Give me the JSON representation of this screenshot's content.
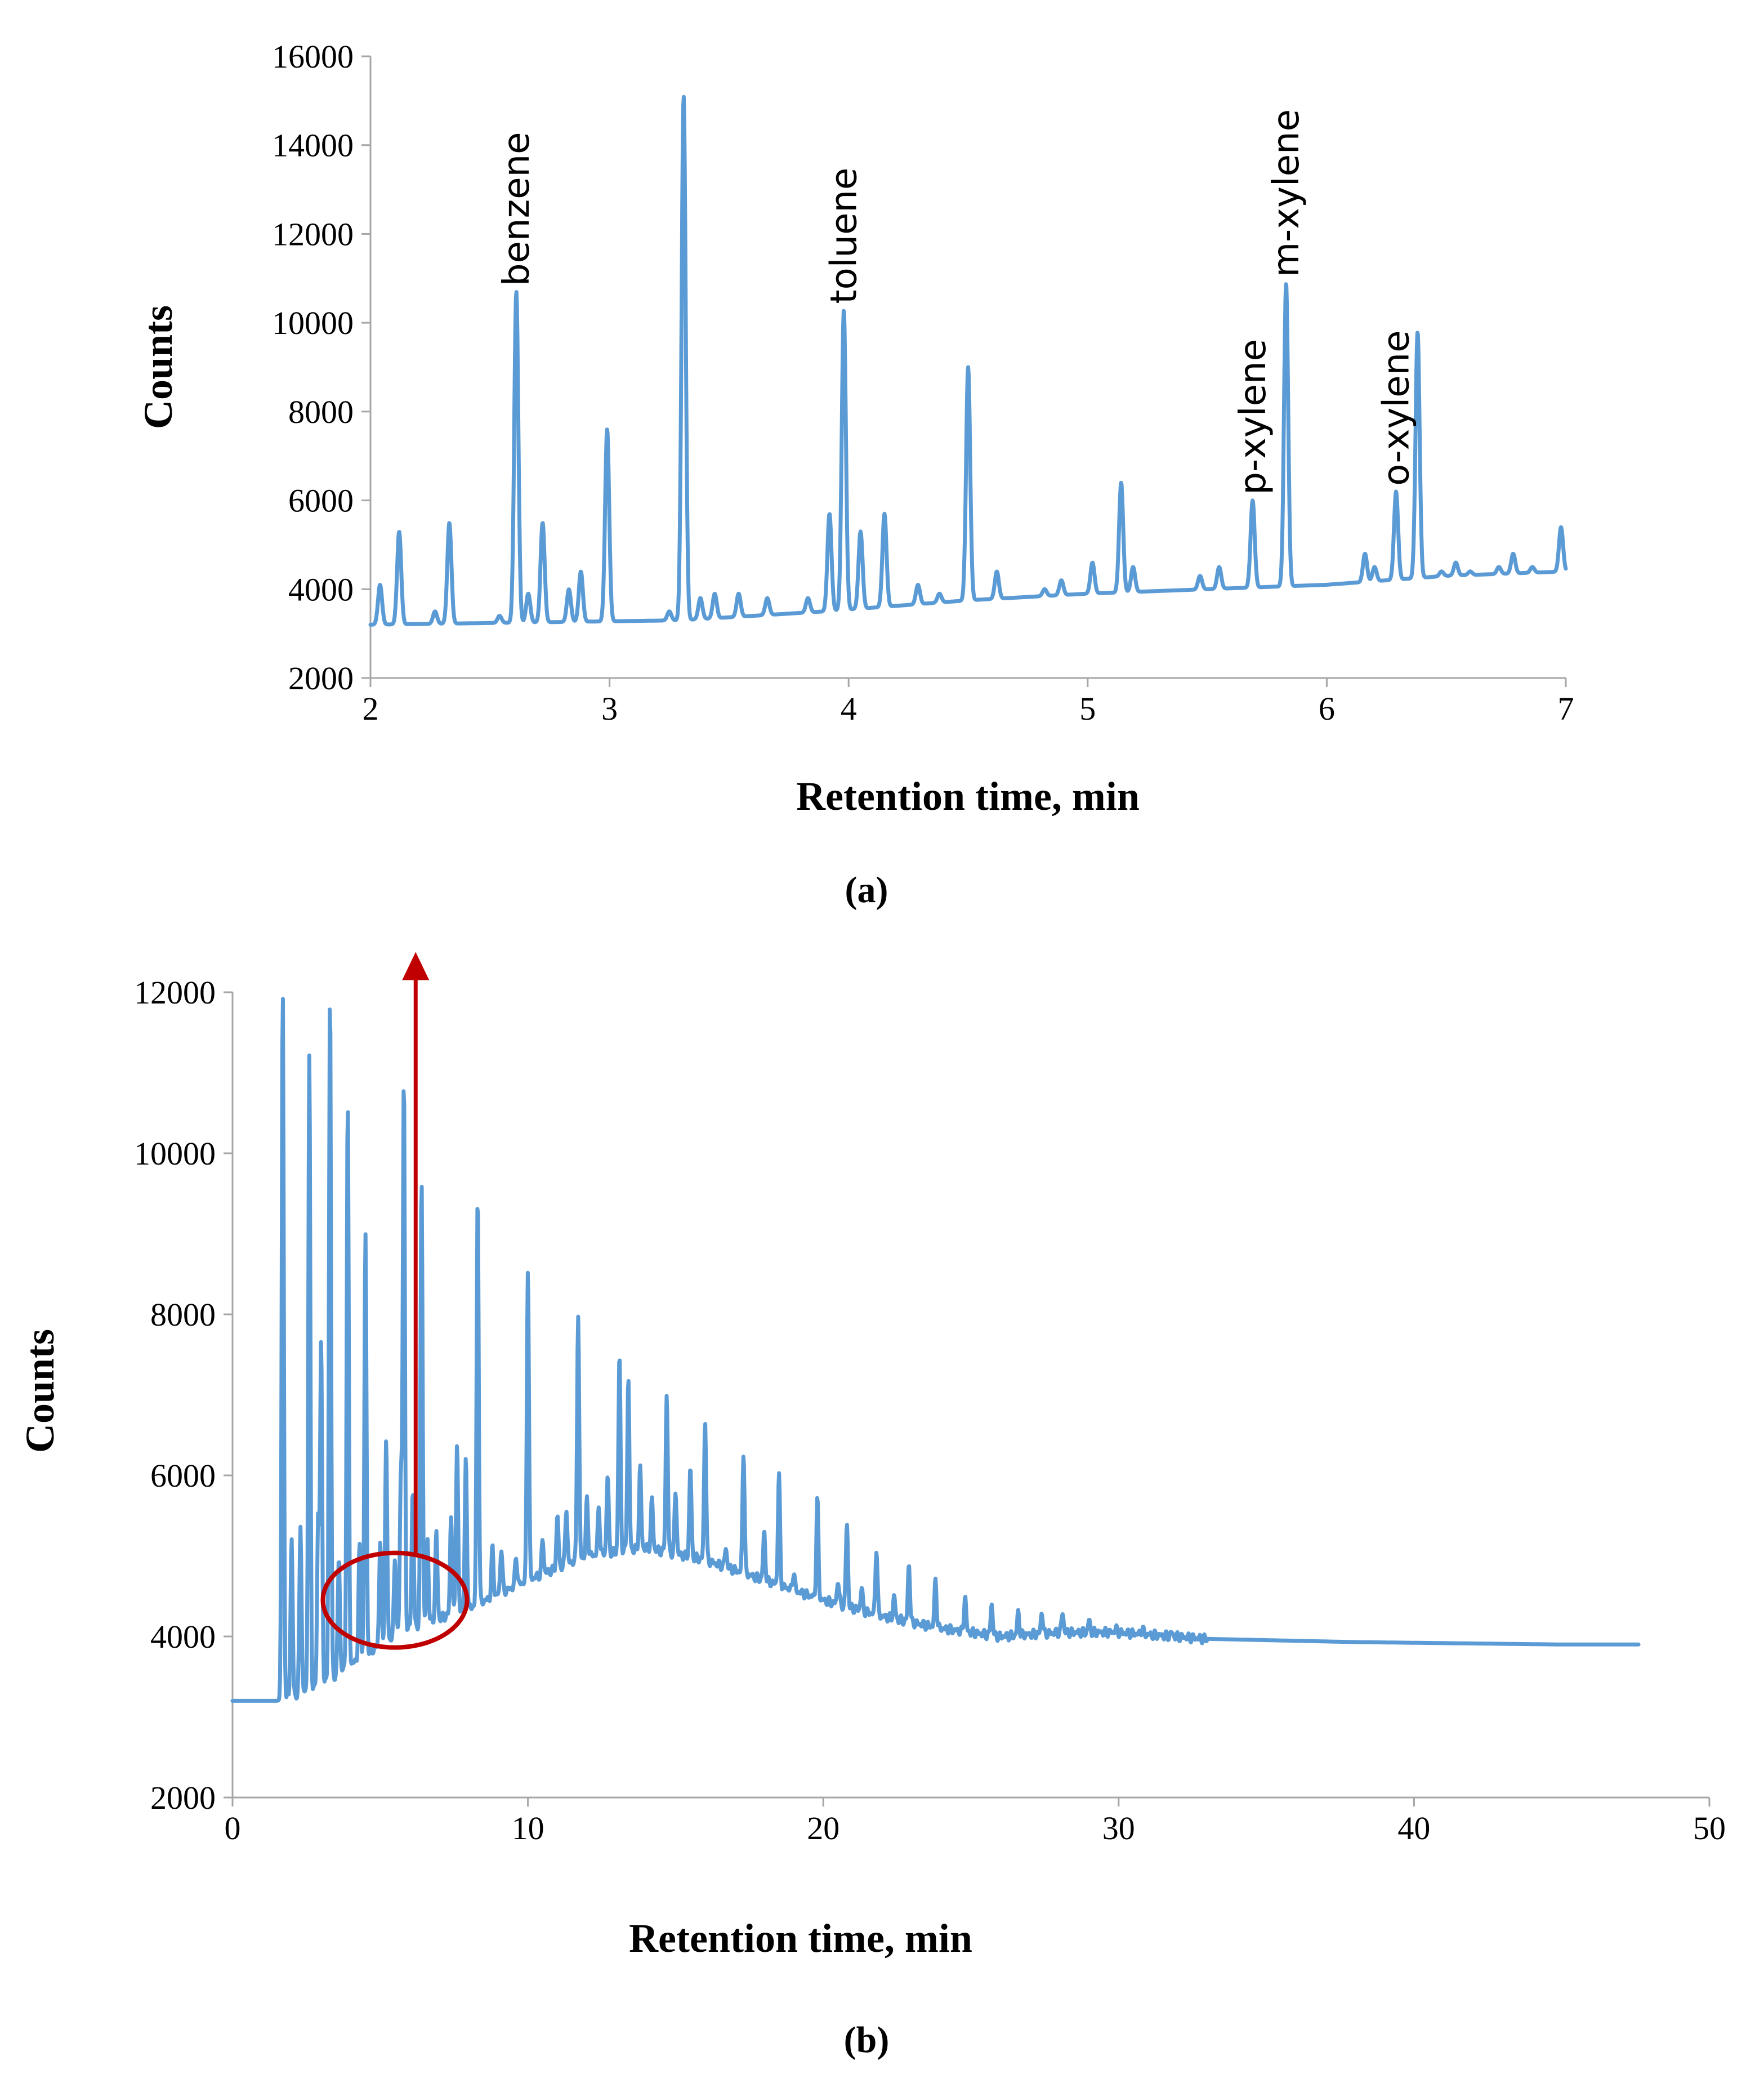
{
  "chart_data": [
    {
      "id": "a",
      "type": "line",
      "panel_label": "(a)",
      "title": "",
      "xlabel": "Retention time, min",
      "ylabel": "Counts",
      "xlim": [
        2,
        7
      ],
      "ylim": [
        2000,
        16000
      ],
      "xticks": [
        2,
        3,
        4,
        5,
        6,
        7
      ],
      "yticks": [
        2000,
        4000,
        6000,
        8000,
        10000,
        12000,
        14000,
        16000
      ],
      "grid": false,
      "legend": "none",
      "color": "#5b9bd5",
      "baseline": [
        [
          2.0,
          3200
        ],
        [
          3.3,
          3300
        ],
        [
          3.9,
          3500
        ],
        [
          4.5,
          3750
        ],
        [
          5.0,
          3900
        ],
        [
          5.5,
          4000
        ],
        [
          6.0,
          4100
        ],
        [
          6.5,
          4300
        ],
        [
          7.0,
          4400
        ]
      ],
      "peaks": [
        {
          "x": 2.04,
          "y": 4100
        },
        {
          "x": 2.12,
          "y": 5300
        },
        {
          "x": 2.27,
          "y": 3500
        },
        {
          "x": 2.33,
          "y": 5500
        },
        {
          "x": 2.54,
          "y": 3400
        },
        {
          "x": 2.61,
          "y": 10700
        },
        {
          "x": 2.66,
          "y": 3900
        },
        {
          "x": 2.72,
          "y": 5500
        },
        {
          "x": 2.83,
          "y": 4000
        },
        {
          "x": 2.88,
          "y": 4400
        },
        {
          "x": 2.99,
          "y": 7600
        },
        {
          "x": 3.25,
          "y": 3500
        },
        {
          "x": 3.31,
          "y": 15100
        },
        {
          "x": 3.38,
          "y": 3800
        },
        {
          "x": 3.44,
          "y": 3900
        },
        {
          "x": 3.54,
          "y": 3900
        },
        {
          "x": 3.66,
          "y": 3800
        },
        {
          "x": 3.83,
          "y": 3800
        },
        {
          "x": 3.92,
          "y": 5700
        },
        {
          "x": 3.98,
          "y": 10300
        },
        {
          "x": 4.05,
          "y": 5300
        },
        {
          "x": 4.15,
          "y": 5700
        },
        {
          "x": 4.29,
          "y": 4100
        },
        {
          "x": 4.38,
          "y": 3900
        },
        {
          "x": 4.5,
          "y": 9000
        },
        {
          "x": 4.62,
          "y": 4400
        },
        {
          "x": 4.82,
          "y": 4000
        },
        {
          "x": 4.89,
          "y": 4200
        },
        {
          "x": 5.02,
          "y": 4600
        },
        {
          "x": 5.14,
          "y": 6400
        },
        {
          "x": 5.19,
          "y": 4500
        },
        {
          "x": 5.47,
          "y": 4300
        },
        {
          "x": 5.55,
          "y": 4500
        },
        {
          "x": 5.69,
          "y": 6000
        },
        {
          "x": 5.83,
          "y": 10900
        },
        {
          "x": 6.16,
          "y": 4800
        },
        {
          "x": 6.2,
          "y": 4500
        },
        {
          "x": 6.29,
          "y": 6200
        },
        {
          "x": 6.38,
          "y": 9800
        },
        {
          "x": 6.48,
          "y": 4400
        },
        {
          "x": 6.54,
          "y": 4600
        },
        {
          "x": 6.6,
          "y": 4400
        },
        {
          "x": 6.72,
          "y": 4500
        },
        {
          "x": 6.78,
          "y": 4800
        },
        {
          "x": 6.86,
          "y": 4500
        },
        {
          "x": 6.98,
          "y": 5400
        }
      ],
      "annotations": [
        {
          "text": "benzene",
          "x": 2.61,
          "y": 10700
        },
        {
          "text": "toluene",
          "x": 3.98,
          "y": 10300
        },
        {
          "text": "p-xylene",
          "x": 5.69,
          "y": 6000
        },
        {
          "text": "m-xylene",
          "x": 5.83,
          "y": 10900
        },
        {
          "text": "o-xylene",
          "x": 6.29,
          "y": 6200
        }
      ]
    },
    {
      "id": "b",
      "type": "line",
      "panel_label": "(b)",
      "title": "",
      "xlabel": "Retention time, min",
      "ylabel": "Counts",
      "xlim": [
        0,
        50
      ],
      "ylim": [
        2000,
        12000
      ],
      "xticks": [
        0,
        10,
        20,
        30,
        40,
        50
      ],
      "yticks": [
        2000,
        4000,
        6000,
        8000,
        10000,
        12000
      ],
      "grid": false,
      "legend": "none",
      "color": "#5b9bd5",
      "highlight_color": "#c00000",
      "highlight_center": [
        5.5,
        4450
      ],
      "arrow_top_y": 12500,
      "baseline": [
        [
          0,
          3200
        ],
        [
          1.5,
          3200
        ],
        [
          2,
          3250
        ],
        [
          3,
          3400
        ],
        [
          4,
          3650
        ],
        [
          5,
          3900
        ],
        [
          6,
          4100
        ],
        [
          8,
          4350
        ],
        [
          10,
          4700
        ],
        [
          12,
          5000
        ],
        [
          14,
          5100
        ],
        [
          16,
          4950
        ],
        [
          18,
          4700
        ],
        [
          20,
          4450
        ],
        [
          22,
          4250
        ],
        [
          24,
          4100
        ],
        [
          26,
          4000
        ],
        [
          28,
          4050
        ],
        [
          30,
          4050
        ],
        [
          33,
          3970
        ],
        [
          38,
          3930
        ],
        [
          45,
          3900
        ],
        [
          47.6,
          3900
        ]
      ],
      "peaks": [
        {
          "x": 1.7,
          "y": 12000
        },
        {
          "x": 2.0,
          "y": 5200
        },
        {
          "x": 2.3,
          "y": 5400
        },
        {
          "x": 2.6,
          "y": 11200
        },
        {
          "x": 2.9,
          "y": 5500
        },
        {
          "x": 3.0,
          "y": 7600
        },
        {
          "x": 3.3,
          "y": 12000
        },
        {
          "x": 3.6,
          "y": 5000
        },
        {
          "x": 3.9,
          "y": 10600
        },
        {
          "x": 4.3,
          "y": 5100
        },
        {
          "x": 4.5,
          "y": 9000
        },
        {
          "x": 5.0,
          "y": 5200
        },
        {
          "x": 5.2,
          "y": 6400
        },
        {
          "x": 5.5,
          "y": 5000
        },
        {
          "x": 5.7,
          "y": 6000
        },
        {
          "x": 5.8,
          "y": 10900
        },
        {
          "x": 6.1,
          "y": 5800
        },
        {
          "x": 6.4,
          "y": 9700
        },
        {
          "x": 6.6,
          "y": 5200
        },
        {
          "x": 6.9,
          "y": 5300
        },
        {
          "x": 7.4,
          "y": 5500
        },
        {
          "x": 7.6,
          "y": 6400
        },
        {
          "x": 7.9,
          "y": 6200
        },
        {
          "x": 8.3,
          "y": 9500
        },
        {
          "x": 8.8,
          "y": 5100
        },
        {
          "x": 9.1,
          "y": 5100
        },
        {
          "x": 9.6,
          "y": 5000
        },
        {
          "x": 10.0,
          "y": 8600
        },
        {
          "x": 10.5,
          "y": 5200
        },
        {
          "x": 11.0,
          "y": 5500
        },
        {
          "x": 11.3,
          "y": 5600
        },
        {
          "x": 11.7,
          "y": 8000
        },
        {
          "x": 12.0,
          "y": 5700
        },
        {
          "x": 12.4,
          "y": 5600
        },
        {
          "x": 12.7,
          "y": 6000
        },
        {
          "x": 13.1,
          "y": 7500
        },
        {
          "x": 13.4,
          "y": 7200
        },
        {
          "x": 13.8,
          "y": 6100
        },
        {
          "x": 14.2,
          "y": 5700
        },
        {
          "x": 14.7,
          "y": 7000
        },
        {
          "x": 15.0,
          "y": 5800
        },
        {
          "x": 15.5,
          "y": 6100
        },
        {
          "x": 16.0,
          "y": 6700
        },
        {
          "x": 16.7,
          "y": 5100
        },
        {
          "x": 17.3,
          "y": 6300
        },
        {
          "x": 18.0,
          "y": 5300
        },
        {
          "x": 18.5,
          "y": 6000
        },
        {
          "x": 19.0,
          "y": 4800
        },
        {
          "x": 19.8,
          "y": 5700
        },
        {
          "x": 20.5,
          "y": 4700
        },
        {
          "x": 20.8,
          "y": 5400
        },
        {
          "x": 21.3,
          "y": 4600
        },
        {
          "x": 21.8,
          "y": 5100
        },
        {
          "x": 22.4,
          "y": 4500
        },
        {
          "x": 22.9,
          "y": 4900
        },
        {
          "x": 23.8,
          "y": 4700
        },
        {
          "x": 24.8,
          "y": 4500
        },
        {
          "x": 25.7,
          "y": 4400
        },
        {
          "x": 26.6,
          "y": 4300
        },
        {
          "x": 27.4,
          "y": 4300
        },
        {
          "x": 28.1,
          "y": 4300
        },
        {
          "x": 29.0,
          "y": 4200
        },
        {
          "x": 29.9,
          "y": 4100
        },
        {
          "x": 30.8,
          "y": 4100
        },
        {
          "x": 31.8,
          "y": 4050
        }
      ]
    }
  ]
}
